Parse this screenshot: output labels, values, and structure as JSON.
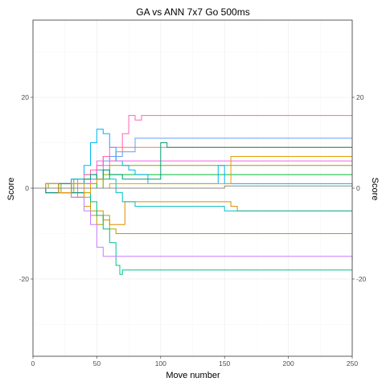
{
  "chart_data": {
    "type": "line",
    "title": "GA vs ANN 7x7 Go 500ms",
    "xlabel": "Move number",
    "ylabel": "Score",
    "ylabel_right": "Score",
    "xlim": [
      0,
      250
    ],
    "ylim": [
      -37,
      37
    ],
    "x_ticks": [
      0,
      50,
      100,
      150,
      200,
      250
    ],
    "x_tick_labels": [
      "0",
      "50",
      "100",
      "150",
      "200",
      "250"
    ],
    "y_ticks": [
      -20,
      0,
      20
    ],
    "y_tick_labels": [
      "-20",
      "0",
      "20"
    ],
    "grid": true,
    "legend": "none",
    "series": [
      {
        "color": "#F8766D",
        "points": [
          [
            0,
            0
          ],
          [
            10,
            1
          ],
          [
            20,
            -1
          ],
          [
            30,
            2
          ],
          [
            35,
            -2
          ],
          [
            40,
            3
          ],
          [
            45,
            1
          ],
          [
            50,
            5
          ],
          [
            55,
            7
          ],
          [
            60,
            6
          ],
          [
            65,
            8
          ],
          [
            70,
            9
          ],
          [
            80,
            9
          ],
          [
            250,
            9
          ]
        ]
      },
      {
        "color": "#DE8C00",
        "points": [
          [
            0,
            0
          ],
          [
            10,
            -1
          ],
          [
            20,
            1
          ],
          [
            30,
            -2
          ],
          [
            40,
            -4
          ],
          [
            45,
            -6
          ],
          [
            50,
            -5
          ],
          [
            55,
            -7
          ],
          [
            60,
            -8
          ],
          [
            70,
            -8
          ],
          [
            72,
            -3
          ],
          [
            80,
            -3
          ],
          [
            150,
            -3
          ],
          [
            155,
            -4
          ],
          [
            160,
            -5
          ],
          [
            250,
            -5
          ]
        ]
      },
      {
        "color": "#B79F00",
        "points": [
          [
            0,
            0
          ],
          [
            10,
            1
          ],
          [
            20,
            -1
          ],
          [
            30,
            1
          ],
          [
            40,
            -2
          ],
          [
            45,
            -5
          ],
          [
            50,
            -8
          ],
          [
            55,
            -6
          ],
          [
            60,
            -9
          ],
          [
            65,
            -10
          ],
          [
            70,
            -10
          ],
          [
            250,
            -10
          ]
        ]
      },
      {
        "color": "#7CAE00",
        "points": [
          [
            0,
            0
          ],
          [
            12,
            1
          ],
          [
            22,
            -1
          ],
          [
            32,
            2
          ],
          [
            40,
            3
          ],
          [
            45,
            2
          ],
          [
            50,
            4
          ],
          [
            55,
            3
          ],
          [
            60,
            5
          ],
          [
            70,
            5
          ],
          [
            250,
            5
          ]
        ]
      },
      {
        "color": "#00BA38",
        "points": [
          [
            0,
            0
          ],
          [
            10,
            -1
          ],
          [
            20,
            1
          ],
          [
            30,
            -1
          ],
          [
            40,
            2
          ],
          [
            45,
            1
          ],
          [
            50,
            0
          ],
          [
            55,
            2
          ],
          [
            60,
            3
          ],
          [
            70,
            3
          ],
          [
            250,
            3
          ]
        ]
      },
      {
        "color": "#00C08B",
        "points": [
          [
            0,
            0
          ],
          [
            10,
            1
          ],
          [
            20,
            -1
          ],
          [
            30,
            1
          ],
          [
            40,
            -1
          ],
          [
            45,
            -3
          ],
          [
            50,
            -6
          ],
          [
            55,
            -9
          ],
          [
            60,
            -12
          ],
          [
            65,
            -17
          ],
          [
            68,
            -19
          ],
          [
            70,
            -18
          ],
          [
            250,
            -18
          ]
        ]
      },
      {
        "color": "#00BFC4",
        "points": [
          [
            0,
            0
          ],
          [
            10,
            -1
          ],
          [
            20,
            1
          ],
          [
            30,
            -1
          ],
          [
            40,
            1
          ],
          [
            45,
            3
          ],
          [
            50,
            2
          ],
          [
            55,
            4
          ],
          [
            60,
            2
          ],
          [
            65,
            -1
          ],
          [
            70,
            -3
          ],
          [
            80,
            -4
          ],
          [
            140,
            -4
          ],
          [
            150,
            -5
          ],
          [
            250,
            -5
          ]
        ]
      },
      {
        "color": "#00B4F0",
        "points": [
          [
            0,
            0
          ],
          [
            10,
            1
          ],
          [
            20,
            -1
          ],
          [
            30,
            2
          ],
          [
            40,
            5
          ],
          [
            45,
            10
          ],
          [
            50,
            13
          ],
          [
            55,
            12
          ],
          [
            60,
            9
          ],
          [
            65,
            6
          ],
          [
            70,
            5
          ],
          [
            75,
            4
          ],
          [
            80,
            3
          ],
          [
            90,
            1
          ],
          [
            130,
            1
          ],
          [
            145,
            5
          ],
          [
            150,
            1
          ],
          [
            250,
            1
          ]
        ]
      },
      {
        "color": "#619CFF",
        "points": [
          [
            0,
            0
          ],
          [
            10,
            -1
          ],
          [
            20,
            1
          ],
          [
            30,
            -1
          ],
          [
            40,
            1
          ],
          [
            45,
            2
          ],
          [
            50,
            4
          ],
          [
            55,
            6
          ],
          [
            60,
            7
          ],
          [
            70,
            8
          ],
          [
            80,
            11
          ],
          [
            250,
            11
          ]
        ]
      },
      {
        "color": "#C77CFF",
        "points": [
          [
            0,
            0
          ],
          [
            10,
            1
          ],
          [
            20,
            -1
          ],
          [
            30,
            -2
          ],
          [
            40,
            -5
          ],
          [
            45,
            -8
          ],
          [
            50,
            -13
          ],
          [
            55,
            -15
          ],
          [
            60,
            -15
          ],
          [
            70,
            -15
          ],
          [
            80,
            -15
          ],
          [
            240,
            -15
          ],
          [
            250,
            -16
          ]
        ]
      },
      {
        "color": "#F564E3",
        "points": [
          [
            0,
            0
          ],
          [
            10,
            -1
          ],
          [
            20,
            1
          ],
          [
            30,
            -1
          ],
          [
            40,
            1
          ],
          [
            45,
            3
          ],
          [
            50,
            6
          ],
          [
            55,
            5
          ],
          [
            60,
            6
          ],
          [
            70,
            6
          ],
          [
            80,
            6
          ],
          [
            250,
            6
          ]
        ]
      },
      {
        "color": "#FF64B0",
        "points": [
          [
            0,
            0
          ],
          [
            10,
            1
          ],
          [
            20,
            -1
          ],
          [
            30,
            1
          ],
          [
            40,
            3
          ],
          [
            45,
            4
          ],
          [
            50,
            5
          ],
          [
            55,
            7
          ],
          [
            60,
            9
          ],
          [
            70,
            12
          ],
          [
            75,
            16
          ],
          [
            80,
            15
          ],
          [
            85,
            16
          ],
          [
            250,
            16
          ]
        ]
      },
      {
        "color": "#009E73",
        "points": [
          [
            0,
            0
          ],
          [
            10,
            -1
          ],
          [
            20,
            1
          ],
          [
            30,
            -1
          ],
          [
            40,
            2
          ],
          [
            45,
            3
          ],
          [
            50,
            2
          ],
          [
            55,
            4
          ],
          [
            60,
            3
          ],
          [
            70,
            2
          ],
          [
            90,
            2
          ],
          [
            100,
            10
          ],
          [
            105,
            9
          ],
          [
            250,
            9
          ]
        ]
      },
      {
        "color": "#E69F00",
        "points": [
          [
            0,
            0
          ],
          [
            10,
            1
          ],
          [
            20,
            -1
          ],
          [
            30,
            1
          ],
          [
            40,
            -1
          ],
          [
            45,
            1
          ],
          [
            50,
            2
          ],
          [
            55,
            0
          ],
          [
            60,
            1
          ],
          [
            150,
            1
          ],
          [
            155,
            7
          ],
          [
            250,
            7
          ]
        ]
      },
      {
        "color": "#888888",
        "points": [
          [
            0,
            0
          ],
          [
            20,
            0
          ],
          [
            40,
            0
          ],
          [
            60,
            0
          ],
          [
            100,
            0
          ],
          [
            150,
            0.5
          ],
          [
            200,
            0.5
          ],
          [
            250,
            1
          ]
        ]
      }
    ]
  }
}
